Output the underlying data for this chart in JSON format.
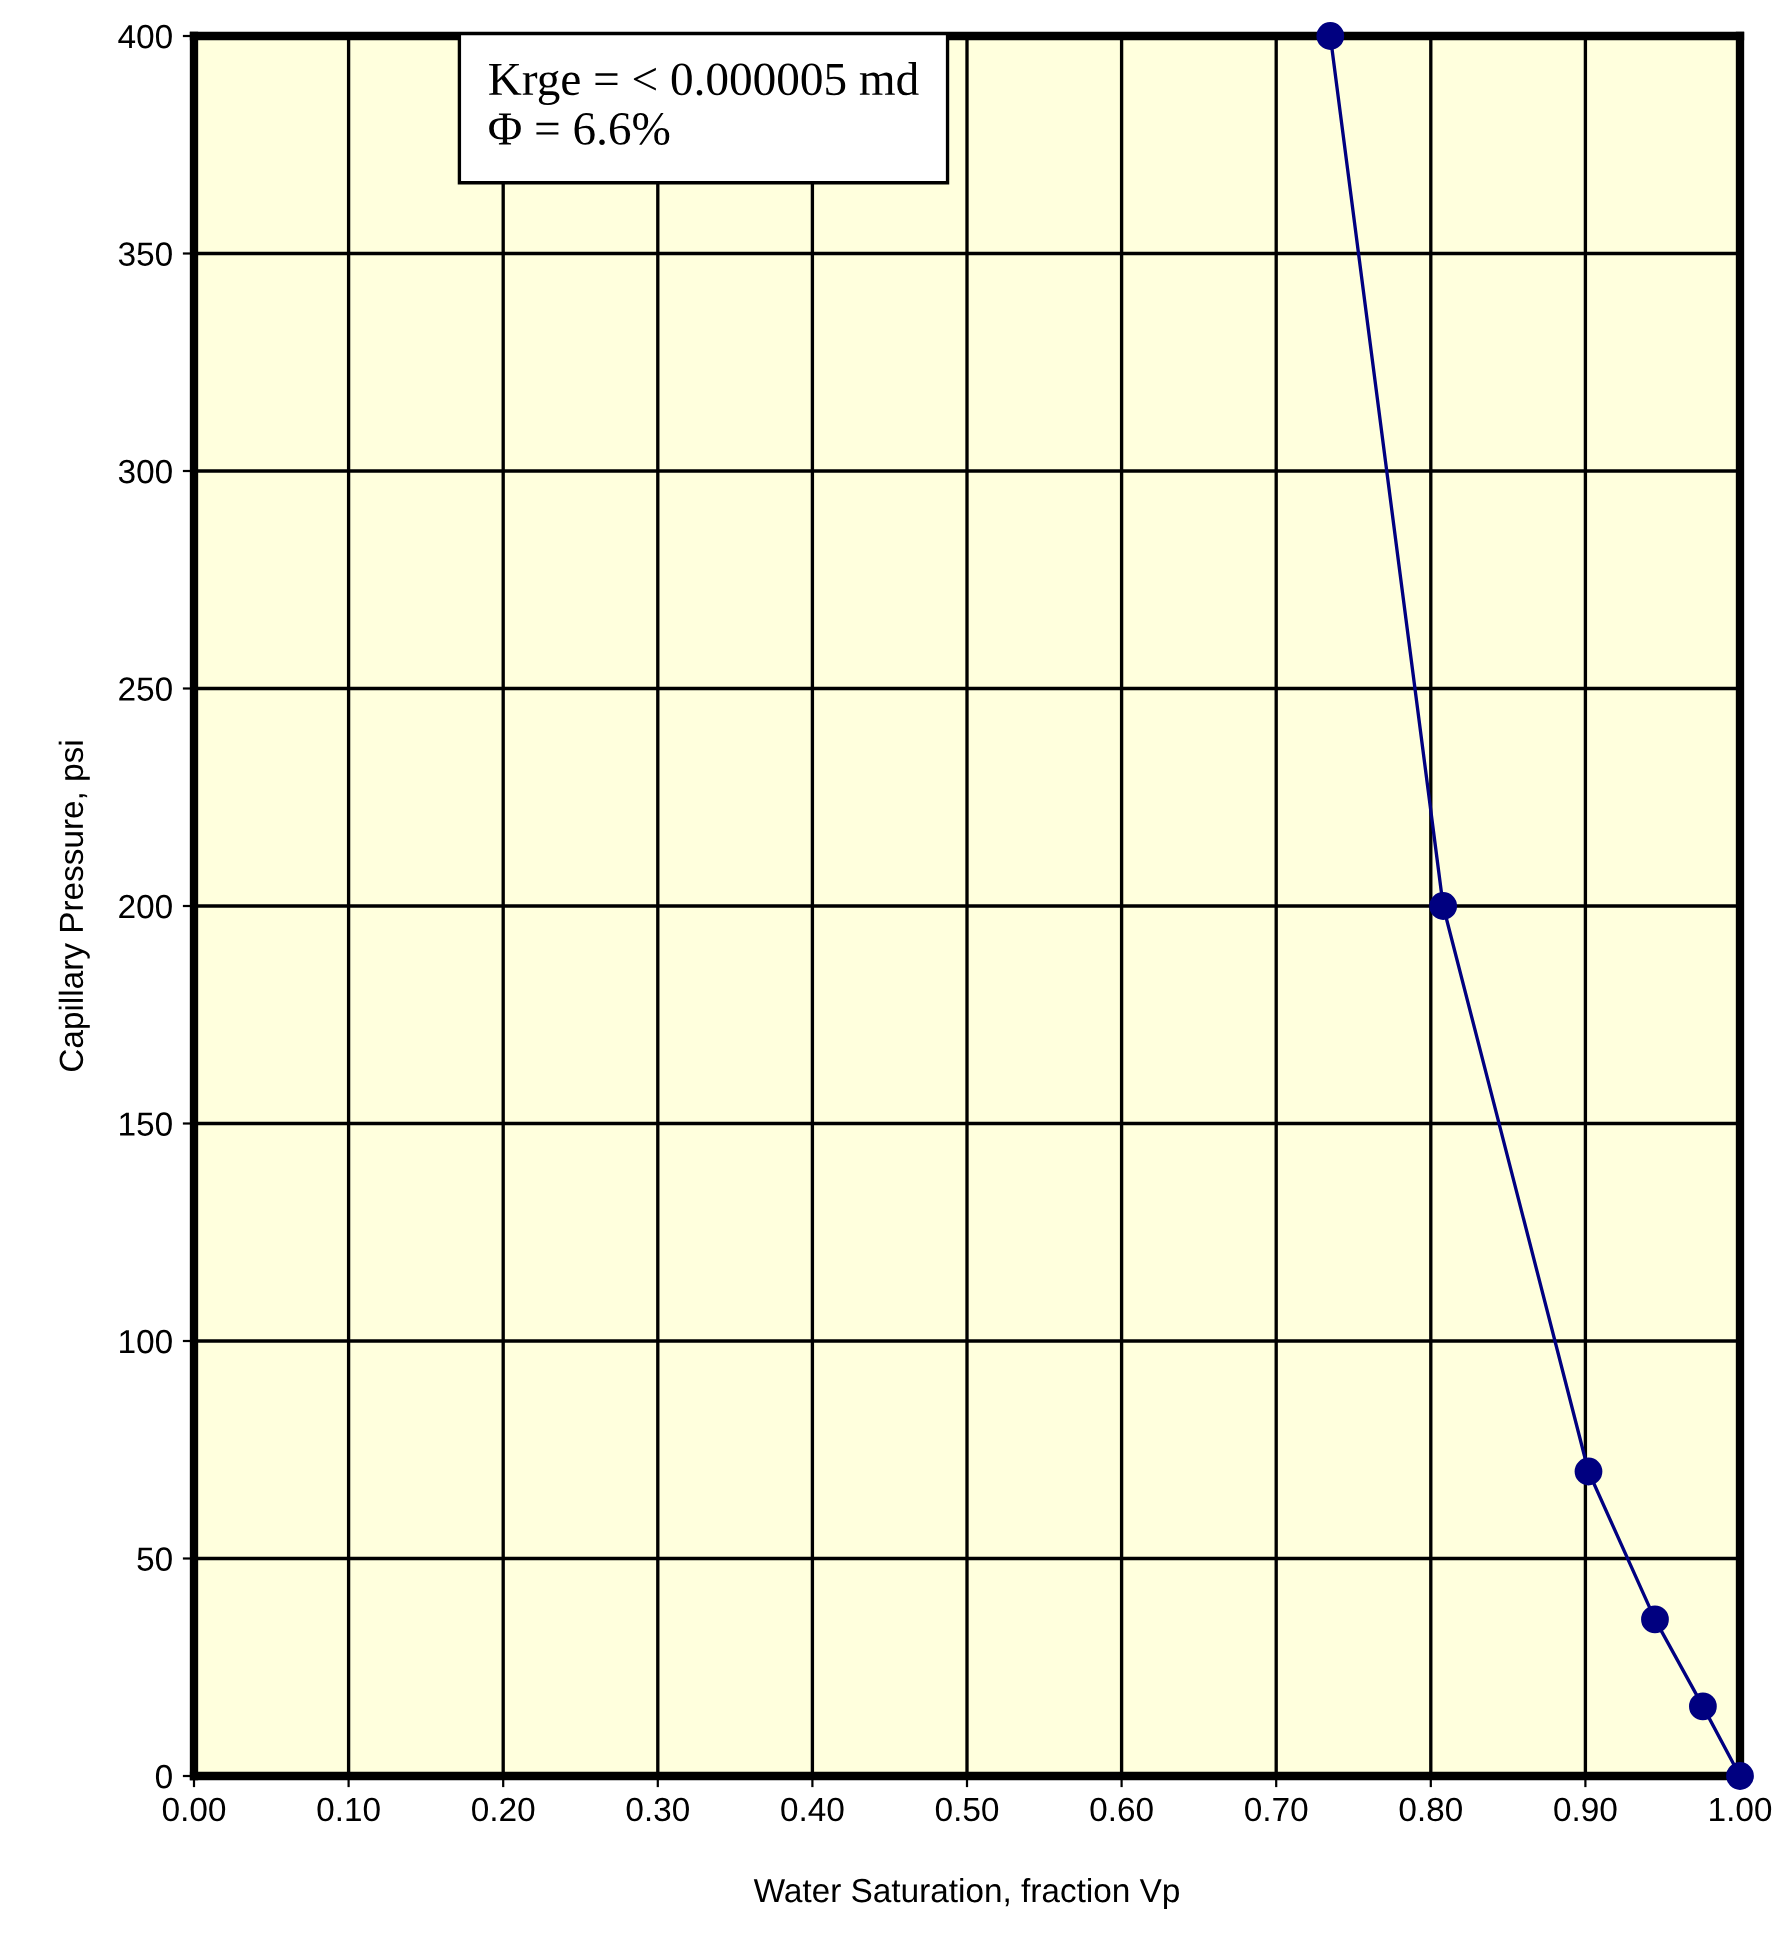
{
  "chart_data": {
    "type": "line",
    "xlabel": "Water Saturation, fraction Vp",
    "ylabel": "Capillary Pressure, psi",
    "x": [
      0.735,
      0.808,
      0.902,
      0.945,
      0.976,
      1.0
    ],
    "series": [
      {
        "color": "#000080",
        "values": [
          400,
          200,
          70,
          36,
          16,
          0
        ]
      }
    ],
    "marker": "circle",
    "line_style": "solid",
    "xlim": [
      0,
      1
    ],
    "ylim": [
      0,
      400
    ],
    "xticks": [
      {
        "value": 0,
        "label": "0.00"
      },
      {
        "value": 0.1,
        "label": "0.10"
      },
      {
        "value": 0.2,
        "label": "0.20"
      },
      {
        "value": 0.3,
        "label": "0.30"
      },
      {
        "value": 0.4,
        "label": "0.40"
      },
      {
        "value": 0.5,
        "label": "0.50"
      },
      {
        "value": 0.6,
        "label": "0.60"
      },
      {
        "value": 0.7,
        "label": "0.70"
      },
      {
        "value": 0.8,
        "label": "0.80"
      },
      {
        "value": 0.9,
        "label": "0.90"
      },
      {
        "value": 1,
        "label": "1.00"
      }
    ],
    "yticks": [
      0,
      50,
      100,
      150,
      200,
      250,
      300,
      350,
      400
    ],
    "grid": true,
    "annotations": [
      "Krge = < 0.000005 md\nΦ = 6.6%"
    ]
  }
}
